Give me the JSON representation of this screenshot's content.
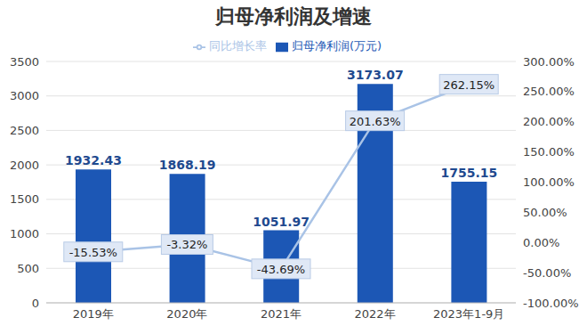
{
  "chart_data": {
    "type": "bar",
    "title": "归母净利润及增速",
    "categories": [
      "2019年",
      "2020年",
      "2021年",
      "2022年",
      "2023年1-9月"
    ],
    "series": [
      {
        "name": "归母净利润(万元)",
        "type": "bar",
        "color": "#1c57b5",
        "values": [
          1932.43,
          1868.19,
          1051.97,
          3173.07,
          1755.15
        ]
      },
      {
        "name": "同比增长率",
        "type": "line",
        "color": "#a9c3e6",
        "marker": "none",
        "axis": "y2",
        "values": [
          -15.53,
          -3.32,
          -43.69,
          201.63,
          262.15
        ],
        "value_labels": [
          "-15.53%",
          "-3.32%",
          "-43.69%",
          "201.63%",
          "262.15%"
        ]
      }
    ],
    "ylim": [
      0,
      3500
    ],
    "yticks": [
      0,
      500,
      1000,
      1500,
      2000,
      2500,
      3000,
      3500
    ],
    "y2lim": [
      -100,
      300
    ],
    "y2ticks": [
      {
        "value": -100,
        "label": "-100.00%"
      },
      {
        "value": -50,
        "label": "-50.00%"
      },
      {
        "value": 0,
        "label": "0.00%"
      },
      {
        "value": 50,
        "label": "50.00%"
      },
      {
        "value": 100,
        "label": "100.00%"
      },
      {
        "value": 150,
        "label": "150.00%"
      },
      {
        "value": 200,
        "label": "200.00%"
      },
      {
        "value": 250,
        "label": "250.00%"
      },
      {
        "value": 300,
        "label": "300.00%"
      }
    ],
    "grid": true,
    "legend": "top",
    "data_labels": true
  }
}
